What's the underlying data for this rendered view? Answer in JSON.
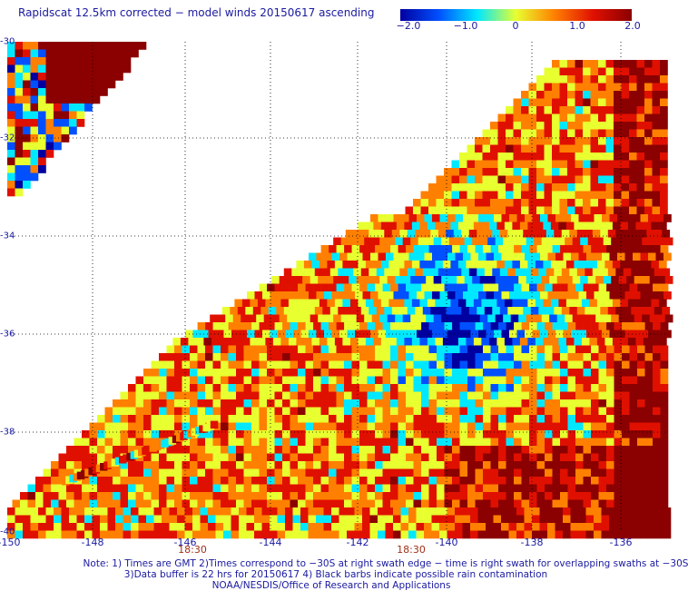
{
  "title": "Rapidscat 12.5km corrected − model winds 20150617 ascending",
  "colorbar": {
    "labels": [
      "−2.0",
      "−1.0",
      "0",
      "1.0",
      "2.0"
    ],
    "range": [
      -2.0,
      2.0
    ],
    "colors": [
      "#0000a0",
      "#0050ff",
      "#00e8ff",
      "#e8ff30",
      "#ff8000",
      "#e01000",
      "#8b0000"
    ]
  },
  "map": {
    "lat_labels": [
      "-30",
      "-32",
      "-34",
      "-36",
      "-38",
      "-40"
    ],
    "lon_labels": [
      "-150",
      "-148",
      "-146",
      "-144",
      "-142",
      "-140",
      "-138",
      "-136"
    ],
    "time_labels": [
      "18:30",
      "18:30"
    ],
    "gridlines": "dotted"
  },
  "notes": {
    "line1": "Note: 1) Times are GMT 2)Times correspond to −30S at right swath edge − time is right swath for overlapping swaths at −30S",
    "line2": "3)Data buffer is 22 hrs for 20150617 4) Black barbs indicate possible rain contamination",
    "line3": "NOAA/NESDIS/Office of Research and Applications"
  }
}
